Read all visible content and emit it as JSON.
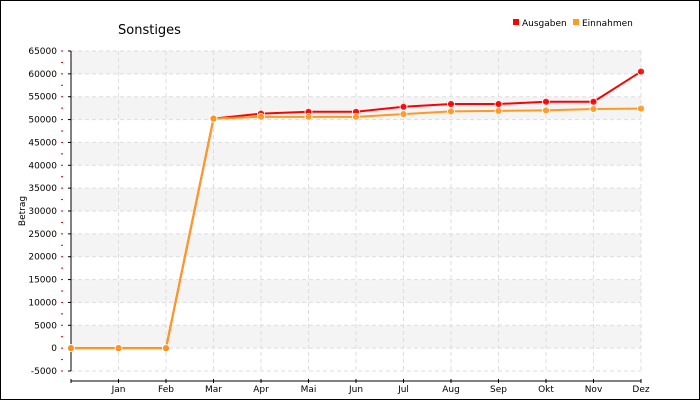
{
  "chart_data": {
    "type": "line",
    "title": "Sonstiges",
    "xlabel": "",
    "ylabel": "Betrag",
    "x_tick_labels": [
      "",
      "Jan",
      "Feb",
      "Mar",
      "Apr",
      "Mai",
      "Jun",
      "Jul",
      "Aug",
      "Sep",
      "Okt",
      "Nov",
      "Dez"
    ],
    "ylim": [
      -5000,
      65000
    ],
    "y_ticks": [
      -5000,
      0,
      5000,
      10000,
      15000,
      20000,
      25000,
      30000,
      35000,
      40000,
      45000,
      50000,
      55000,
      60000,
      65000
    ],
    "grid": true,
    "legend_position": "top-right",
    "series": [
      {
        "name": "Ausgaben",
        "color": "#ff0000",
        "values": [
          0,
          0,
          0,
          50200,
          51300,
          51700,
          51700,
          52800,
          53400,
          53400,
          53900,
          53900,
          60500
        ]
      },
      {
        "name": "Einnahmen",
        "color": "#ff9922",
        "values": [
          0,
          0,
          0,
          50200,
          50600,
          50600,
          50600,
          51200,
          51800,
          51900,
          52000,
          52300,
          52400
        ]
      }
    ]
  }
}
